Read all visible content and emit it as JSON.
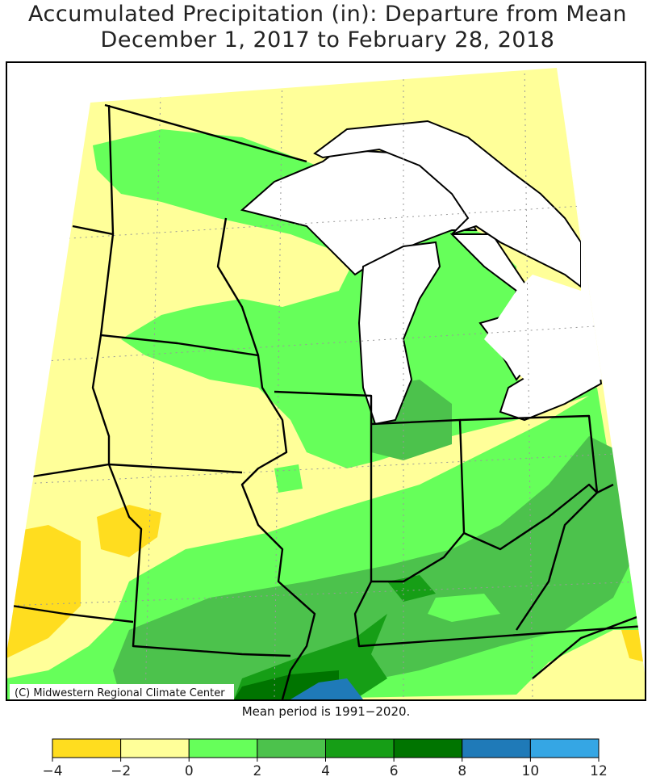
{
  "title": [
    "Accumulated Precipitation (in): Departure from Mean",
    "December 1, 2017 to February 28, 2018"
  ],
  "credit": "(C) Midwestern Regional Climate Center",
  "note": "Mean period is 1991−2020.",
  "colorbar": {
    "ticks": [
      {
        "value": -4,
        "label": "−4"
      },
      {
        "value": -2,
        "label": "−2"
      },
      0,
      2,
      4,
      6,
      8,
      10,
      12
    ],
    "colors": [
      "#ffdd1f",
      "#ffff99",
      "#66ff5a",
      "#4cc24c",
      "#169e16",
      "#007400",
      "#1f7ab8",
      "#35a6e4"
    ]
  }
}
